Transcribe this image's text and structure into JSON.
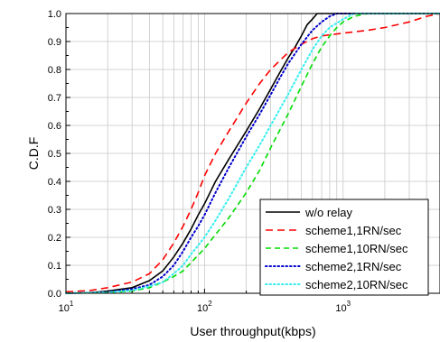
{
  "chart_data": {
    "type": "line",
    "title": "",
    "xlabel": "User throughput(kbps)",
    "ylabel": "C.D.F",
    "xscale": "log",
    "xlim": [
      10,
      5000
    ],
    "ylim": [
      0,
      1.0
    ],
    "grid": true,
    "legend_position": "bottom-right",
    "x_ticks": [
      {
        "value": 10,
        "base": "10",
        "exp": "1"
      },
      {
        "value": 100,
        "base": "10",
        "exp": "2"
      },
      {
        "value": 1000,
        "base": "10",
        "exp": "3"
      }
    ],
    "y_ticks": [
      "0.0",
      "0.1",
      "0.2",
      "0.3",
      "0.4",
      "0.5",
      "0.6",
      "0.7",
      "0.8",
      "0.9",
      "1.0"
    ],
    "series": [
      {
        "name": "w/o relay",
        "color": "#000000",
        "dash": "solid",
        "points": [
          [
            10,
            0
          ],
          [
            15,
            0.002
          ],
          [
            20,
            0.008
          ],
          [
            30,
            0.02
          ],
          [
            40,
            0.045
          ],
          [
            50,
            0.08
          ],
          [
            60,
            0.13
          ],
          [
            70,
            0.18
          ],
          [
            80,
            0.23
          ],
          [
            90,
            0.28
          ],
          [
            100,
            0.32
          ],
          [
            120,
            0.4
          ],
          [
            150,
            0.48
          ],
          [
            200,
            0.58
          ],
          [
            250,
            0.66
          ],
          [
            300,
            0.73
          ],
          [
            350,
            0.79
          ],
          [
            400,
            0.84
          ],
          [
            450,
            0.88
          ],
          [
            500,
            0.92
          ],
          [
            550,
            0.96
          ],
          [
            600,
            0.98
          ],
          [
            650,
            1.0
          ],
          [
            5000,
            1.0
          ]
        ]
      },
      {
        "name": "scheme1,1RN/sec",
        "color": "#ff0000",
        "dash": "long-dash",
        "points": [
          [
            10,
            0.005
          ],
          [
            15,
            0.01
          ],
          [
            20,
            0.02
          ],
          [
            30,
            0.04
          ],
          [
            40,
            0.07
          ],
          [
            50,
            0.12
          ],
          [
            60,
            0.18
          ],
          [
            70,
            0.24
          ],
          [
            80,
            0.3
          ],
          [
            90,
            0.36
          ],
          [
            100,
            0.42
          ],
          [
            120,
            0.5
          ],
          [
            150,
            0.58
          ],
          [
            200,
            0.68
          ],
          [
            250,
            0.75
          ],
          [
            300,
            0.8
          ],
          [
            400,
            0.86
          ],
          [
            500,
            0.89
          ],
          [
            600,
            0.91
          ],
          [
            700,
            0.92
          ],
          [
            1000,
            0.93
          ],
          [
            1500,
            0.94
          ],
          [
            2000,
            0.95
          ],
          [
            3000,
            0.97
          ],
          [
            4000,
            0.99
          ],
          [
            5000,
            1.0
          ]
        ]
      },
      {
        "name": "scheme1,10RN/sec",
        "color": "#00dd00",
        "dash": "dash",
        "points": [
          [
            10,
            0
          ],
          [
            20,
            0.002
          ],
          [
            30,
            0.008
          ],
          [
            40,
            0.02
          ],
          [
            50,
            0.04
          ],
          [
            60,
            0.06
          ],
          [
            70,
            0.08
          ],
          [
            80,
            0.11
          ],
          [
            100,
            0.16
          ],
          [
            120,
            0.21
          ],
          [
            150,
            0.27
          ],
          [
            200,
            0.36
          ],
          [
            250,
            0.44
          ],
          [
            300,
            0.52
          ],
          [
            400,
            0.64
          ],
          [
            500,
            0.74
          ],
          [
            600,
            0.82
          ],
          [
            700,
            0.88
          ],
          [
            800,
            0.92
          ],
          [
            900,
            0.95
          ],
          [
            1000,
            0.97
          ],
          [
            1200,
            0.99
          ],
          [
            1500,
            1.0
          ],
          [
            5000,
            1.0
          ]
        ]
      },
      {
        "name": "scheme2,1RN/sec",
        "color": "#0000cc",
        "dash": "dot",
        "points": [
          [
            10,
            0
          ],
          [
            20,
            0.004
          ],
          [
            30,
            0.015
          ],
          [
            40,
            0.03
          ],
          [
            50,
            0.06
          ],
          [
            60,
            0.1
          ],
          [
            70,
            0.15
          ],
          [
            80,
            0.2
          ],
          [
            90,
            0.24
          ],
          [
            100,
            0.28
          ],
          [
            120,
            0.36
          ],
          [
            150,
            0.45
          ],
          [
            200,
            0.56
          ],
          [
            250,
            0.64
          ],
          [
            300,
            0.71
          ],
          [
            350,
            0.77
          ],
          [
            400,
            0.82
          ],
          [
            500,
            0.89
          ],
          [
            600,
            0.94
          ],
          [
            700,
            0.97
          ],
          [
            800,
            0.99
          ],
          [
            900,
            1.0
          ],
          [
            5000,
            1.0
          ]
        ]
      },
      {
        "name": "scheme2,10RN/sec",
        "color": "#33eeee",
        "dash": "dot",
        "points": [
          [
            10,
            0
          ],
          [
            20,
            0.003
          ],
          [
            30,
            0.01
          ],
          [
            40,
            0.025
          ],
          [
            50,
            0.04
          ],
          [
            60,
            0.07
          ],
          [
            70,
            0.1
          ],
          [
            80,
            0.14
          ],
          [
            100,
            0.2
          ],
          [
            120,
            0.26
          ],
          [
            150,
            0.34
          ],
          [
            200,
            0.45
          ],
          [
            250,
            0.53
          ],
          [
            300,
            0.6
          ],
          [
            400,
            0.71
          ],
          [
            500,
            0.8
          ],
          [
            600,
            0.87
          ],
          [
            700,
            0.92
          ],
          [
            800,
            0.95
          ],
          [
            1000,
            0.98
          ],
          [
            1200,
            1.0
          ],
          [
            5000,
            1.0
          ]
        ]
      }
    ]
  }
}
